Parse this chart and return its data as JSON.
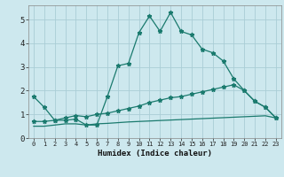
{
  "xlabel": "Humidex (Indice chaleur)",
  "bg_color": "#cde8ee",
  "grid_color": "#aacdd6",
  "line_color": "#1a7a6e",
  "xlim": [
    -0.5,
    23.5
  ],
  "ylim": [
    0,
    5.6
  ],
  "xticks": [
    0,
    1,
    2,
    3,
    4,
    5,
    6,
    7,
    8,
    9,
    10,
    11,
    12,
    13,
    14,
    15,
    16,
    17,
    18,
    19,
    20,
    21,
    22,
    23
  ],
  "yticks": [
    0,
    1,
    2,
    3,
    4,
    5
  ],
  "curve1_x": [
    0,
    1,
    2,
    3,
    4,
    5,
    6,
    7,
    8,
    9,
    10,
    11,
    12,
    13,
    14,
    15,
    16,
    17,
    18,
    19,
    20,
    21,
    22,
    23
  ],
  "curve1_y": [
    1.75,
    1.3,
    0.75,
    0.75,
    0.8,
    0.55,
    0.55,
    1.75,
    3.05,
    3.15,
    4.45,
    5.15,
    4.5,
    5.3,
    4.5,
    4.35,
    3.75,
    3.6,
    3.25,
    2.5,
    2.0,
    1.55,
    1.3,
    0.85
  ],
  "curve2_x": [
    0,
    1,
    2,
    3,
    4,
    5,
    6,
    7,
    8,
    9,
    10,
    11,
    12,
    13,
    14,
    15,
    16,
    17,
    18,
    19,
    20,
    21,
    22,
    23
  ],
  "curve2_y": [
    0.7,
    0.7,
    0.75,
    0.85,
    0.95,
    0.9,
    1.0,
    1.05,
    1.15,
    1.25,
    1.35,
    1.5,
    1.6,
    1.7,
    1.75,
    1.85,
    1.95,
    2.05,
    2.15,
    2.25,
    2.0,
    1.55,
    1.3,
    0.85
  ],
  "curve3_x": [
    0,
    1,
    2,
    3,
    4,
    5,
    6,
    7,
    8,
    9,
    10,
    11,
    12,
    13,
    14,
    15,
    16,
    17,
    18,
    19,
    20,
    21,
    22,
    23
  ],
  "curve3_y": [
    0.5,
    0.5,
    0.55,
    0.6,
    0.6,
    0.55,
    0.6,
    0.62,
    0.65,
    0.68,
    0.7,
    0.72,
    0.74,
    0.76,
    0.78,
    0.8,
    0.82,
    0.84,
    0.86,
    0.88,
    0.9,
    0.92,
    0.94,
    0.85
  ]
}
